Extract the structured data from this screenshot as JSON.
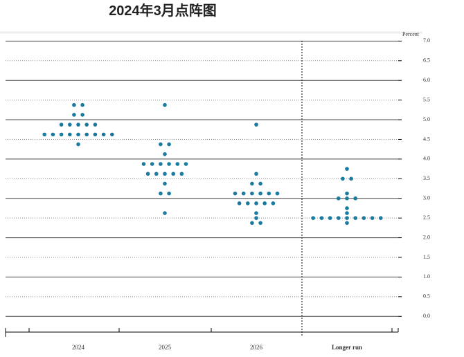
{
  "chart_data": {
    "type": "dot",
    "title": "2024年3月点阵图",
    "y_label": "Percent",
    "categories": [
      "2024",
      "2025",
      "2026",
      "Longer run"
    ],
    "values": [
      [
        5.375,
        5.375,
        5.125,
        5.125,
        4.875,
        4.875,
        4.875,
        4.875,
        4.875,
        4.625,
        4.625,
        4.625,
        4.625,
        4.625,
        4.625,
        4.625,
        4.625,
        4.625,
        4.375
      ],
      [
        5.375,
        4.375,
        4.375,
        4.125,
        3.875,
        3.875,
        3.875,
        3.875,
        3.875,
        3.875,
        3.625,
        3.625,
        3.625,
        3.625,
        3.625,
        3.375,
        3.125,
        3.125,
        2.625
      ],
      [
        4.875,
        3.625,
        3.375,
        3.375,
        3.125,
        3.125,
        3.125,
        3.125,
        3.125,
        3.125,
        2.875,
        2.875,
        2.875,
        2.875,
        2.875,
        2.625,
        2.5,
        2.375,
        2.375
      ],
      [
        3.75,
        3.5,
        3.5,
        3.125,
        3.0,
        3.0,
        3.0,
        2.75,
        2.625,
        2.5,
        2.5,
        2.5,
        2.5,
        2.5,
        2.5,
        2.5,
        2.5,
        2.5,
        2.375
      ]
    ],
    "color": "#1a7aa0",
    "ylim": [
      -0.4,
      7.2
    ],
    "yticks": [
      {
        "value": 0,
        "label": "0.0"
      },
      {
        "value": 0.5,
        "label": "0.5"
      },
      {
        "value": 1,
        "label": "1.0"
      },
      {
        "value": 1.5,
        "label": "1.5"
      },
      {
        "value": 2,
        "label": "2.0"
      },
      {
        "value": 2.5,
        "label": "2.5"
      },
      {
        "value": 3,
        "label": "3.0"
      },
      {
        "value": 3.5,
        "label": "3.5"
      },
      {
        "value": 4,
        "label": "4.0"
      },
      {
        "value": 4.5,
        "label": "4.5"
      },
      {
        "value": 5,
        "label": "5.0"
      },
      {
        "value": 5.5,
        "label": "5.5"
      },
      {
        "value": 6,
        "label": "6.0"
      },
      {
        "value": 6.5,
        "label": "6.5"
      },
      {
        "value": 7,
        "label": "7.0"
      }
    ],
    "grid": true
  }
}
